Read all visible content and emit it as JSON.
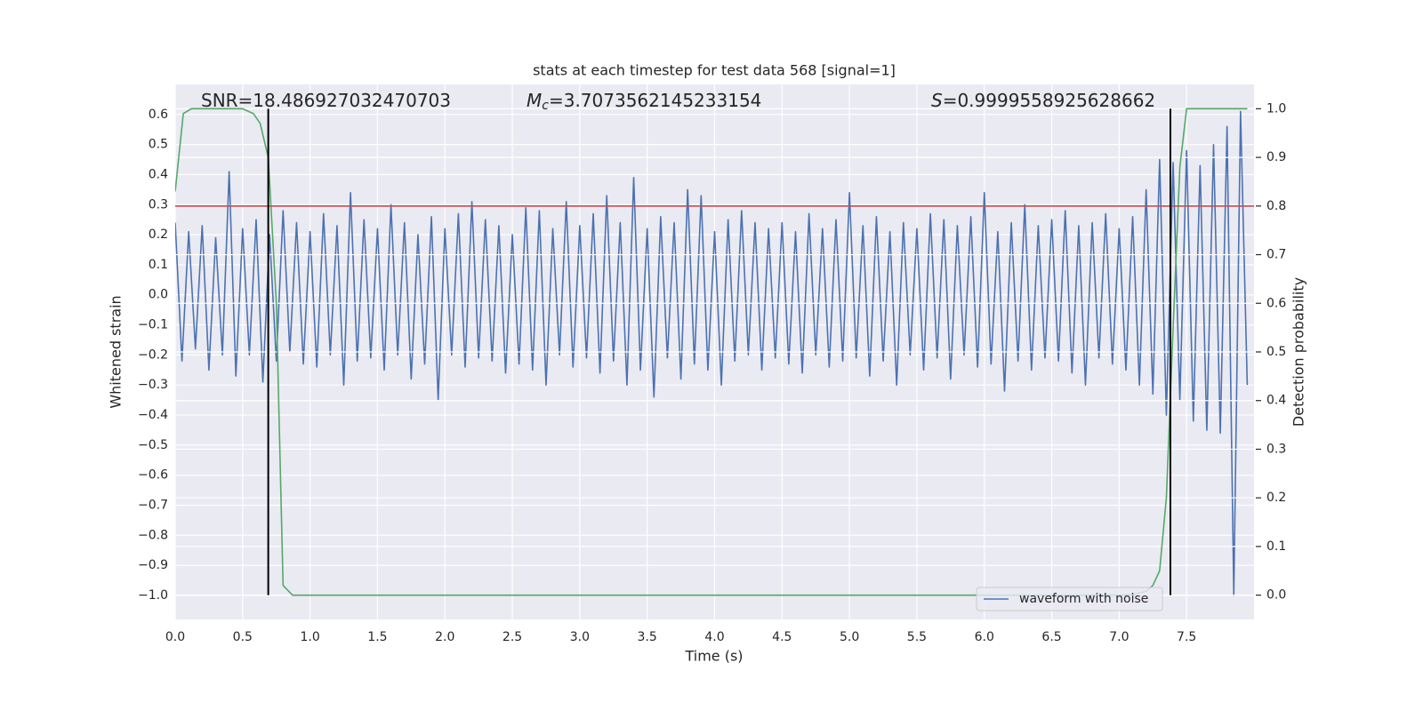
{
  "chart_data": {
    "type": "line",
    "title": "stats at each timestep for test data 568 [signal=1]",
    "xlabel": "Time (s)",
    "ylabel": "Whitened strain",
    "y2label": "Detection probability",
    "xlim": [
      0,
      8
    ],
    "ylim": [
      -1.08,
      0.7
    ],
    "y2lim": [
      -0.05,
      1.05
    ],
    "xticks": [
      {
        "value": 0,
        "label": "0.0"
      },
      0.5,
      {
        "value": 1,
        "label": "1.0"
      },
      1.5,
      {
        "value": 2,
        "label": "2.0"
      },
      2.5,
      {
        "value": 3,
        "label": "3.0"
      },
      3.5,
      {
        "value": 4,
        "label": "4.0"
      },
      4.5,
      {
        "value": 5,
        "label": "5.0"
      },
      5.5,
      {
        "value": 6,
        "label": "6.0"
      },
      6.5,
      {
        "value": 7,
        "label": "7.0"
      },
      7.5
    ],
    "yticks": [
      {
        "value": -1,
        "label": "−1.0"
      },
      {
        "value": -0.9,
        "label": "−0.9"
      },
      {
        "value": -0.8,
        "label": "−0.8"
      },
      {
        "value": -0.7,
        "label": "−0.7"
      },
      {
        "value": -0.6,
        "label": "−0.6"
      },
      {
        "value": -0.5,
        "label": "−0.5"
      },
      {
        "value": -0.4,
        "label": "−0.4"
      },
      {
        "value": -0.3,
        "label": "−0.3"
      },
      {
        "value": -0.2,
        "label": "−0.2"
      },
      {
        "value": -0.1,
        "label": "−0.1"
      },
      {
        "value": 0,
        "label": "0.0"
      },
      0.1,
      0.2,
      0.3,
      0.4,
      0.5,
      0.6
    ],
    "y2ticks": [
      {
        "value": 0,
        "label": "0.0"
      },
      0.1,
      0.2,
      0.3,
      0.4,
      0.5,
      0.6,
      0.7,
      0.8,
      0.9,
      {
        "value": 1,
        "label": "1.0"
      }
    ],
    "grid": true,
    "legend": "lower right",
    "series": [
      {
        "name": "waveform with noise",
        "color": "#4c72b0",
        "x": [
          0,
          0.05,
          0.1,
          0.15,
          0.2,
          0.25,
          0.3,
          0.35,
          0.4,
          0.45,
          0.5,
          0.55,
          0.6,
          0.65,
          0.7,
          0.75,
          0.8,
          0.85,
          0.9,
          0.95,
          1,
          1.05,
          1.1,
          1.15,
          1.2,
          1.25,
          1.3,
          1.35,
          1.4,
          1.45,
          1.5,
          1.55,
          1.6,
          1.65,
          1.7,
          1.75,
          1.8,
          1.85,
          1.9,
          1.95,
          2,
          2.05,
          2.1,
          2.15,
          2.2,
          2.25,
          2.3,
          2.35,
          2.4,
          2.45,
          2.5,
          2.55,
          2.6,
          2.65,
          2.7,
          2.75,
          2.8,
          2.85,
          2.9,
          2.95,
          3,
          3.05,
          3.1,
          3.15,
          3.2,
          3.25,
          3.3,
          3.35,
          3.4,
          3.45,
          3.5,
          3.55,
          3.6,
          3.65,
          3.7,
          3.75,
          3.8,
          3.85,
          3.9,
          3.95,
          4,
          4.05,
          4.1,
          4.15,
          4.2,
          4.25,
          4.3,
          4.35,
          4.4,
          4.45,
          4.5,
          4.55,
          4.6,
          4.65,
          4.7,
          4.75,
          4.8,
          4.85,
          4.9,
          4.95,
          5,
          5.05,
          5.1,
          5.15,
          5.2,
          5.25,
          5.3,
          5.35,
          5.4,
          5.45,
          5.5,
          5.55,
          5.6,
          5.65,
          5.7,
          5.75,
          5.8,
          5.85,
          5.9,
          5.95,
          6,
          6.05,
          6.1,
          6.15,
          6.2,
          6.25,
          6.3,
          6.35,
          6.4,
          6.45,
          6.5,
          6.55,
          6.6,
          6.65,
          6.7,
          6.75,
          6.8,
          6.85,
          6.9,
          6.95,
          7,
          7.05,
          7.1,
          7.15,
          7.2,
          7.25,
          7.3,
          7.35,
          7.4,
          7.45,
          7.5,
          7.55,
          7.6,
          7.65,
          7.7,
          7.75,
          7.8,
          7.85,
          7.9,
          7.95
        ],
        "values": [
          0.24,
          -0.22,
          0.21,
          -0.18,
          0.23,
          -0.25,
          0.19,
          -0.2,
          0.41,
          -0.27,
          0.22,
          -0.2,
          0.25,
          -0.29,
          0.2,
          -0.22,
          0.28,
          -0.19,
          0.24,
          -0.23,
          0.21,
          -0.24,
          0.27,
          -0.2,
          0.23,
          -0.3,
          0.34,
          -0.22,
          0.25,
          -0.21,
          0.22,
          -0.25,
          0.3,
          -0.2,
          0.24,
          -0.28,
          0.2,
          -0.23,
          0.26,
          -0.35,
          0.22,
          -0.2,
          0.27,
          -0.24,
          0.31,
          -0.21,
          0.25,
          -0.22,
          0.23,
          -0.26,
          0.2,
          -0.23,
          0.29,
          -0.25,
          0.28,
          -0.3,
          0.22,
          -0.2,
          0.31,
          -0.24,
          0.23,
          -0.21,
          0.27,
          -0.26,
          0.33,
          -0.22,
          0.24,
          -0.3,
          0.39,
          -0.25,
          0.22,
          -0.34,
          0.26,
          -0.21,
          0.24,
          -0.28,
          0.35,
          -0.23,
          0.33,
          -0.25,
          0.21,
          -0.3,
          0.25,
          -0.22,
          0.28,
          -0.2,
          0.24,
          -0.25,
          0.22,
          -0.21,
          0.24,
          -0.23,
          0.21,
          -0.26,
          0.27,
          -0.2,
          0.22,
          -0.24,
          0.25,
          -0.22,
          0.34,
          -0.21,
          0.23,
          -0.27,
          0.26,
          -0.22,
          0.21,
          -0.3,
          0.24,
          -0.2,
          0.22,
          -0.25,
          0.27,
          -0.21,
          0.25,
          -0.28,
          0.23,
          -0.2,
          0.26,
          -0.24,
          0.34,
          -0.23,
          0.21,
          -0.32,
          0.24,
          -0.22,
          0.3,
          -0.25,
          0.23,
          -0.21,
          0.25,
          -0.22,
          0.28,
          -0.26,
          0.23,
          -0.3,
          0.24,
          -0.21,
          0.27,
          -0.23,
          0.22,
          -0.25,
          0.26,
          -0.3,
          0.35,
          -0.33,
          0.45,
          -0.4,
          0.44,
          -0.35,
          0.48,
          -0.42,
          0.43,
          -0.45,
          0.5,
          -0.46,
          0.56,
          -1.0,
          0.61,
          -0.3
        ]
      },
      {
        "color": "#55a868",
        "axis": "y2",
        "x": [
          0,
          0.06,
          0.12,
          0.5,
          0.58,
          0.63,
          0.69,
          0.75,
          0.8,
          0.87,
          7.0,
          7.1,
          7.2,
          7.25,
          7.3,
          7.35,
          7.4,
          7.45,
          7.5,
          7.55,
          7.95
        ],
        "values": [
          0.83,
          0.99,
          1.0,
          1.0,
          0.99,
          0.97,
          0.9,
          0.6,
          0.02,
          0.0,
          0.0,
          0.001,
          0.008,
          0.02,
          0.05,
          0.2,
          0.55,
          0.88,
          1.0,
          1.0,
          1.0
        ]
      }
    ],
    "hlines": [
      {
        "axis": "y2",
        "value": 0.8,
        "color": "#c44e52"
      }
    ],
    "vlines": [
      {
        "axis": "y2",
        "x": 0.69,
        "ymin": 0,
        "ymax": 1,
        "color": "#000000"
      },
      {
        "axis": "y2",
        "x": 7.38,
        "ymin": 0,
        "ymax": 1,
        "color": "#000000"
      }
    ],
    "annotations": [
      {
        "text": "SNR=18.486927032470703"
      },
      {
        "italic": "M",
        "sub": "c",
        "text": "=3.7073562145233154"
      },
      {
        "italic": "S",
        "text": "=0.9999558925628662"
      }
    ]
  }
}
